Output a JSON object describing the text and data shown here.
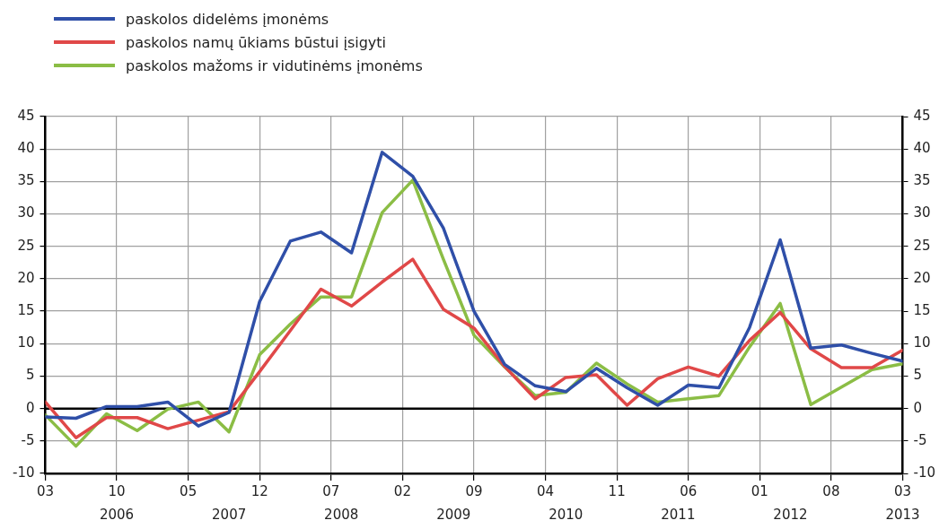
{
  "chart_data": {
    "type": "line",
    "x": [
      "2006-03",
      "2006-06",
      "2006-09",
      "2006-12",
      "2007-03",
      "2007-06",
      "2007-09",
      "2007-12",
      "2008-03",
      "2008-06",
      "2008-09",
      "2008-12",
      "2009-03",
      "2009-06",
      "2009-09",
      "2009-12",
      "2010-03",
      "2010-06",
      "2010-09",
      "2010-12",
      "2011-03",
      "2011-06",
      "2011-09",
      "2011-12",
      "2012-03",
      "2012-06",
      "2012-09",
      "2012-12",
      "2013-03"
    ],
    "series": [
      {
        "name": "paskolos didelėms įmonėms",
        "color": "#2f4fa8",
        "values": [
          -1.3,
          -1.5,
          0.3,
          0.3,
          1.0,
          -2.7,
          -0.6,
          16.5,
          25.8,
          27.2,
          24,
          39.5,
          35.8,
          27.8,
          15,
          6.8,
          3.5,
          2.6,
          6.2,
          3.2,
          0.5,
          3.6,
          3.2,
          12.5,
          26,
          9.3,
          9.8,
          8.5,
          7.3
        ]
      },
      {
        "name": "paskolos namų ūkiams būstui įsigyti",
        "color": "#e04848",
        "values": [
          1.0,
          -4.5,
          -1.4,
          -1.4,
          -3.1,
          -1.8,
          -0.5,
          5.7,
          12,
          18.4,
          15.8,
          19.5,
          23,
          15.3,
          12.4,
          6.5,
          1.5,
          4.8,
          5.2,
          0.5,
          4.6,
          6.4,
          5,
          10.5,
          14.8,
          9.2,
          6.3,
          6.3,
          9.0
        ]
      },
      {
        "name": "paskolos mažoms ir vidutinėms įmonėms",
        "color": "#8bbd45",
        "values": [
          -1.0,
          -5.8,
          -0.8,
          -3.4,
          -0.1,
          1.0,
          -3.6,
          8.3,
          13,
          17.2,
          17.2,
          30.2,
          35.2,
          23,
          11.3,
          6.4,
          2,
          2.5,
          7.0,
          3.8,
          1.0,
          1.5,
          2.0,
          9.5,
          16.2,
          0.6,
          3.3,
          6.0,
          6.9
        ]
      }
    ],
    "xlim": [
      "2006-03",
      "2013-03"
    ],
    "xticks": [
      {
        "value": "2006-03",
        "label": "03"
      },
      {
        "value": "2006-10",
        "label": "10"
      },
      {
        "value": "2007-05",
        "label": "05"
      },
      {
        "value": "2007-12",
        "label": "12"
      },
      {
        "value": "2008-07",
        "label": "07"
      },
      {
        "value": "2009-02",
        "label": "02"
      },
      {
        "value": "2009-09",
        "label": "09"
      },
      {
        "value": "2010-04",
        "label": "04"
      },
      {
        "value": "2010-11",
        "label": "11"
      },
      {
        "value": "2011-06",
        "label": "06"
      },
      {
        "value": "2012-01",
        "label": "01"
      },
      {
        "value": "2012-08",
        "label": "08"
      },
      {
        "value": "2013-03",
        "label": "03"
      }
    ],
    "ylim": [
      -10,
      45
    ],
    "yticks": [
      -10,
      -5,
      0,
      5,
      10,
      15,
      20,
      25,
      30,
      35,
      40,
      45
    ],
    "y2lim": [
      -10,
      45
    ],
    "y2ticks": [
      -10,
      -5,
      0,
      5,
      10,
      15,
      20,
      25,
      30,
      35,
      40,
      45
    ],
    "ref_lines": [
      {
        "axis": "y",
        "value": 0,
        "color": "#000000"
      }
    ],
    "annotations": [
      "2006",
      "2007",
      "2008",
      "2009",
      "2010",
      "2011",
      "2012",
      "2013"
    ],
    "grid": true,
    "legend": "top left",
    "marker": "none",
    "line_style": "solid"
  }
}
